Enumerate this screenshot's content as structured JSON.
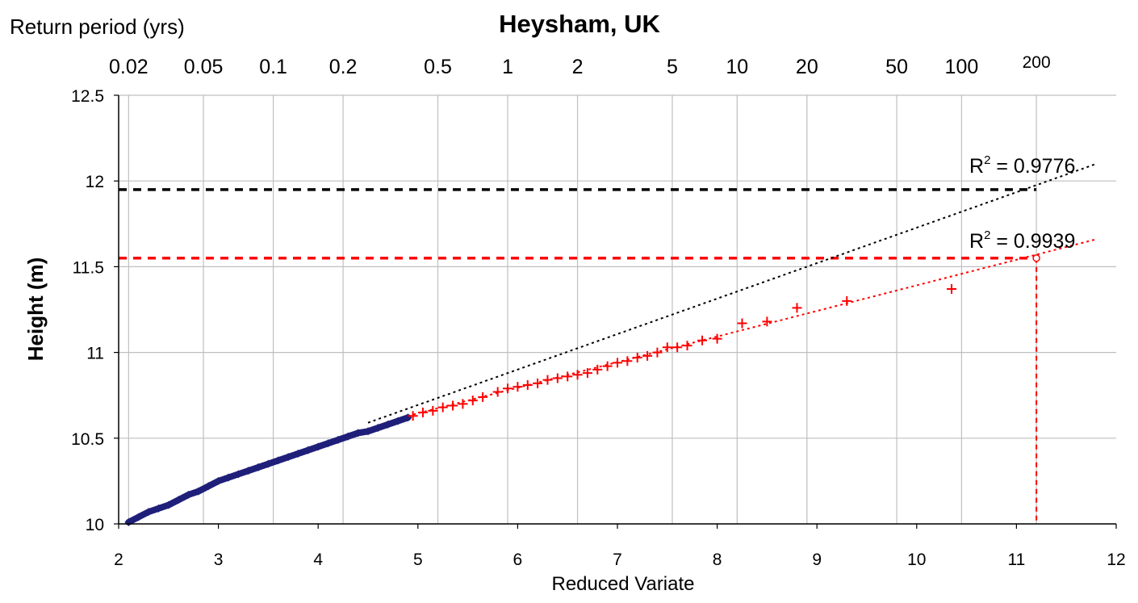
{
  "chart_data": {
    "type": "scatter",
    "title": "Heysham, UK",
    "xlabel": "Reduced Variate",
    "ylabel": "Height (m)",
    "return_period_label": "Return period (yrs)",
    "xlim": [
      2,
      12
    ],
    "ylim": [
      10,
      12.5
    ],
    "x_ticks": [
      2,
      3,
      4,
      5,
      6,
      7,
      8,
      9,
      10,
      11,
      12
    ],
    "y_ticks": [
      10,
      10.5,
      11,
      11.5,
      12,
      12.5
    ],
    "x_tick_labels": [
      "2",
      "3",
      "4",
      "5",
      "6",
      "7",
      "8",
      "9",
      "10",
      "11",
      "12"
    ],
    "y_tick_labels": [
      "10",
      "10.5",
      "11",
      "11.5",
      "12",
      "12.5"
    ],
    "grid": true,
    "return_periods": [
      {
        "label": "0.02",
        "x": 2.1
      },
      {
        "label": "0.05",
        "x": 2.85
      },
      {
        "label": "0.1",
        "x": 3.55
      },
      {
        "label": "0.2",
        "x": 4.25
      },
      {
        "label": "0.5",
        "x": 5.2
      },
      {
        "label": "1",
        "x": 5.9
      },
      {
        "label": "2",
        "x": 6.6
      },
      {
        "label": "5",
        "x": 7.55
      },
      {
        "label": "10",
        "x": 8.2
      },
      {
        "label": "20",
        "x": 8.9
      },
      {
        "label": "50",
        "x": 9.8
      },
      {
        "label": "100",
        "x": 10.45
      },
      {
        "label": "200",
        "x": 11.2
      }
    ],
    "series": [
      {
        "color": "#1f1f7a",
        "marker": "diamond",
        "points": [
          [
            2.1,
            10.01
          ],
          [
            2.2,
            10.04
          ],
          [
            2.3,
            10.07
          ],
          [
            2.4,
            10.09
          ],
          [
            2.5,
            10.11
          ],
          [
            2.6,
            10.14
          ],
          [
            2.7,
            10.17
          ],
          [
            2.8,
            10.19
          ],
          [
            2.9,
            10.22
          ],
          [
            3.0,
            10.25
          ],
          [
            3.1,
            10.27
          ],
          [
            3.2,
            10.29
          ],
          [
            3.3,
            10.31
          ],
          [
            3.4,
            10.33
          ],
          [
            3.5,
            10.35
          ],
          [
            3.6,
            10.37
          ],
          [
            3.7,
            10.39
          ],
          [
            3.8,
            10.41
          ],
          [
            3.9,
            10.43
          ],
          [
            4.0,
            10.45
          ],
          [
            4.1,
            10.47
          ],
          [
            4.2,
            10.49
          ],
          [
            4.3,
            10.51
          ],
          [
            4.4,
            10.53
          ],
          [
            4.5,
            10.54
          ],
          [
            4.6,
            10.56
          ],
          [
            4.7,
            10.58
          ],
          [
            4.8,
            10.6
          ],
          [
            4.9,
            10.62
          ]
        ]
      },
      {
        "color": "#ff0000",
        "marker": "plus",
        "points": [
          [
            4.95,
            10.63
          ],
          [
            5.05,
            10.65
          ],
          [
            5.15,
            10.66
          ],
          [
            5.25,
            10.68
          ],
          [
            5.35,
            10.69
          ],
          [
            5.45,
            10.7
          ],
          [
            5.55,
            10.72
          ],
          [
            5.65,
            10.74
          ],
          [
            5.8,
            10.77
          ],
          [
            5.9,
            10.79
          ],
          [
            6.0,
            10.8
          ],
          [
            6.1,
            10.81
          ],
          [
            6.2,
            10.82
          ],
          [
            6.3,
            10.84
          ],
          [
            6.4,
            10.85
          ],
          [
            6.5,
            10.86
          ],
          [
            6.6,
            10.87
          ],
          [
            6.7,
            10.88
          ],
          [
            6.8,
            10.9
          ],
          [
            6.9,
            10.92
          ],
          [
            7.0,
            10.94
          ],
          [
            7.1,
            10.95
          ],
          [
            7.2,
            10.97
          ],
          [
            7.3,
            10.98
          ],
          [
            7.4,
            11.0
          ],
          [
            7.5,
            11.03
          ],
          [
            7.6,
            11.03
          ],
          [
            7.7,
            11.04
          ],
          [
            7.85,
            11.07
          ],
          [
            8.0,
            11.08
          ],
          [
            8.25,
            11.17
          ],
          [
            8.5,
            11.18
          ],
          [
            8.8,
            11.26
          ],
          [
            9.3,
            11.3
          ],
          [
            10.35,
            11.37
          ]
        ]
      }
    ],
    "trendlines": [
      {
        "color": "#000000",
        "label": "R² = 0.9776",
        "r2_base": "R",
        "r2_sup": "2",
        "r2_value": " = 0.9776",
        "x": [
          4.5,
          11.8
        ],
        "y": [
          10.59,
          12.1
        ]
      },
      {
        "color": "#ff0000",
        "label": "R² = 0.9939",
        "r2_base": "R",
        "r2_sup": "2",
        "r2_value": " = 0.9939",
        "x": [
          4.9,
          11.8
        ],
        "y": [
          10.63,
          11.66
        ]
      }
    ],
    "reference_lines": [
      {
        "color": "#000000",
        "y": 11.95,
        "x_end": 11.2
      },
      {
        "color": "#ff0000",
        "y": 11.55,
        "x_end": 11.2
      }
    ],
    "vertical_reference": {
      "color": "#ff0000",
      "x": 11.2,
      "y_top": 11.55
    },
    "marker_point": {
      "x": 11.2,
      "y": 11.55,
      "color": "#ff0000"
    }
  }
}
